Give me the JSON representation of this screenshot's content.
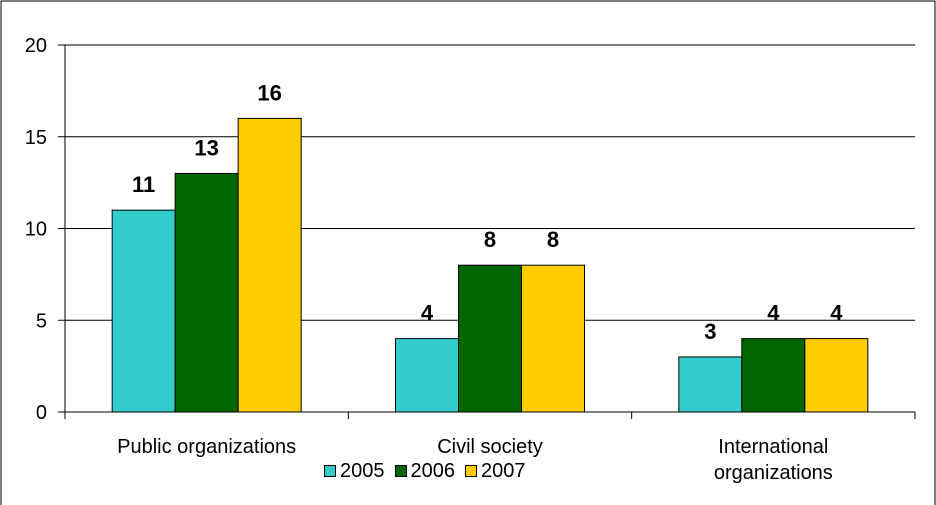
{
  "chart_data": {
    "type": "bar",
    "categories": [
      "Public organizations",
      "Civil society",
      "International organizations"
    ],
    "series": [
      {
        "name": "2005",
        "color": "#33cccc",
        "values": [
          11,
          4,
          3
        ]
      },
      {
        "name": "2006",
        "color": "#006600",
        "values": [
          13,
          8,
          4
        ]
      },
      {
        "name": "2007",
        "color": "#ffcc00",
        "values": [
          16,
          8,
          4
        ]
      }
    ],
    "ylim": [
      0,
      20
    ],
    "yticks": [
      0,
      5,
      10,
      15,
      20
    ],
    "grid": true,
    "legend": "bottom"
  }
}
